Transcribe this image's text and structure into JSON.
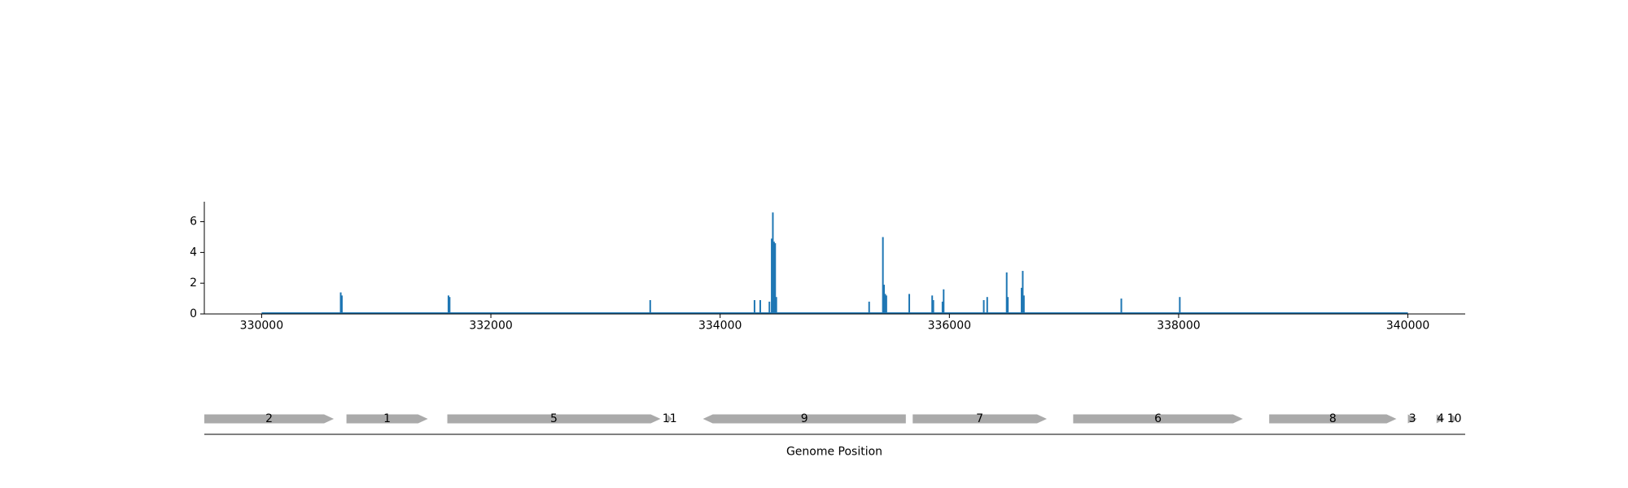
{
  "chart_data": [
    {
      "type": "bar",
      "title": "",
      "xlabel": "",
      "ylabel": "",
      "xlim": [
        329500,
        340500
      ],
      "ylim": [
        0,
        7.3
      ],
      "x_ticks": [
        330000,
        332000,
        334000,
        336000,
        338000,
        340000
      ],
      "y_ticks": [
        0,
        2,
        4,
        6
      ],
      "grid": false,
      "series_color": "#1f77b4",
      "baseline_range": [
        330000,
        340000
      ],
      "x": [
        330690,
        330700,
        331630,
        331640,
        333390,
        334300,
        334350,
        334430,
        334450,
        334460,
        334470,
        334480,
        334490,
        335300,
        335420,
        335430,
        335440,
        335450,
        335650,
        335850,
        335860,
        335940,
        335950,
        336300,
        336330,
        336500,
        336510,
        336630,
        336640,
        336650,
        337500,
        338010
      ],
      "values": [
        1.4,
        1.2,
        1.2,
        1.1,
        0.9,
        0.9,
        0.9,
        0.8,
        4.9,
        6.6,
        4.7,
        4.6,
        1.1,
        0.8,
        5.0,
        1.9,
        1.3,
        1.2,
        1.3,
        1.2,
        0.9,
        0.8,
        1.6,
        0.9,
        1.1,
        2.7,
        1.1,
        1.7,
        2.8,
        1.2,
        1.0,
        1.1
      ]
    },
    {
      "type": "gene-map",
      "xlabel": "Genome Position",
      "gene_color": "#aaaaaa",
      "genes": [
        {
          "label": "2",
          "start": 329500,
          "end": 330630,
          "strand": "+"
        },
        {
          "label": "1",
          "start": 330740,
          "end": 331450,
          "strand": "+"
        },
        {
          "label": "5",
          "start": 331620,
          "end": 333480,
          "strand": "+"
        },
        {
          "label": "11",
          "start": 333540,
          "end": 333580,
          "strand": "+"
        },
        {
          "label": "9",
          "start": 333850,
          "end": 335620,
          "strand": "-"
        },
        {
          "label": "7",
          "start": 335680,
          "end": 336850,
          "strand": "+"
        },
        {
          "label": "6",
          "start": 337080,
          "end": 338560,
          "strand": "+"
        },
        {
          "label": "8",
          "start": 338790,
          "end": 339900,
          "strand": "+"
        },
        {
          "label": "3",
          "start": 340000,
          "end": 340080,
          "strand": "+"
        },
        {
          "label": "4",
          "start": 340250,
          "end": 340320,
          "strand": "+"
        },
        {
          "label": "10",
          "start": 340380,
          "end": 340430,
          "strand": "+"
        }
      ]
    }
  ]
}
